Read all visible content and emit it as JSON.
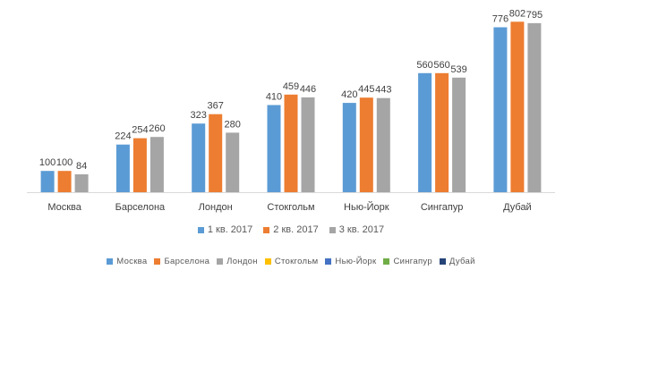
{
  "chart_data": {
    "type": "bar",
    "title": "",
    "xlabel": "",
    "ylabel": "",
    "grid": false,
    "categories": [
      "Москва",
      "Барселона",
      "Лондон",
      "Стокгольм",
      "Нью-Йорк",
      "Сингапур",
      "Дубай"
    ],
    "series": [
      {
        "name": "1 кв. 2017",
        "color": "#5B9BD5",
        "values": [
          100,
          224,
          323,
          410,
          420,
          560,
          776
        ]
      },
      {
        "name": "2 кв. 2017",
        "color": "#ED7D31",
        "values": [
          100,
          254,
          367,
          459,
          445,
          560,
          802
        ]
      },
      {
        "name": "3 кв. 2017",
        "color": "#A5A5A5",
        "values": [
          84,
          260,
          280,
          446,
          443,
          539,
          795
        ]
      }
    ],
    "ylim": [
      0,
      820
    ],
    "series_legend_placement": "bottom",
    "category_legend": [
      {
        "label": "Москва",
        "color": "#5B9BD5"
      },
      {
        "label": "Барселона",
        "color": "#ED7D31"
      },
      {
        "label": "Лондон",
        "color": "#A5A5A5"
      },
      {
        "label": "Стокгольм",
        "color": "#FFC000"
      },
      {
        "label": "Нью-Йорк",
        "color": "#4472C4"
      },
      {
        "label": "Сингапур",
        "color": "#70AD47"
      },
      {
        "label": "Дубай",
        "color": "#264478"
      }
    ]
  }
}
